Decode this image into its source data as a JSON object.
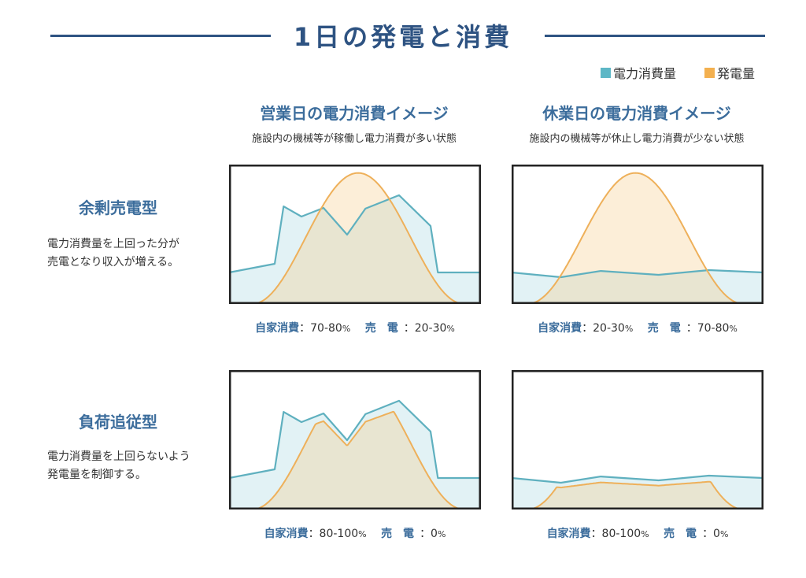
{
  "title": "1日の発電と消費",
  "legend": [
    {
      "label": "電力消費量",
      "color": "#5db7c6"
    },
    {
      "label": "発電量",
      "color": "#f3b04f"
    }
  ],
  "columns": [
    {
      "heading": "営業日の電力消費イメージ",
      "subtitle": "施設内の機械等が稼働し電力消費が多い状態"
    },
    {
      "heading": "休業日の電力消費イメージ",
      "subtitle": "施設内の機械等が休止し電力消費が少ない状態"
    }
  ],
  "rows": [
    {
      "heading": "余剰売電型",
      "desc1": "電力消費量を上回った分が",
      "desc2": "売電となり収入が増える。"
    },
    {
      "heading": "負荷追従型",
      "desc1": "電力消費量を上回らないよう",
      "desc2": "発電量を制御する。"
    }
  ],
  "captions": [
    {
      "self_label": "自家消費",
      "self_value": "：70-80",
      "sell_label": "売　電",
      "sell_value": "：20-30",
      "pct": "%"
    },
    {
      "self_label": "自家消費",
      "self_value": "：20-30",
      "sell_label": "売　電",
      "sell_value": "：70-80",
      "pct": "%"
    },
    {
      "self_label": "自家消費",
      "self_value": "：80-100",
      "sell_label": "売　電",
      "sell_value": "：0",
      "pct": "%"
    },
    {
      "self_label": "自家消費",
      "self_value": "：80-100",
      "sell_label": "売　電",
      "sell_value": "：0",
      "pct": "%"
    }
  ],
  "chart_data": [
    {
      "type": "area",
      "panel": "営業日・余剰売電型",
      "x_unit": "hour",
      "xlim": [
        0,
        24
      ],
      "ylim": [
        0,
        100
      ],
      "consumption": [
        [
          0,
          22.6
        ],
        [
          4.35,
          28.8
        ],
        [
          5.2,
          70
        ],
        [
          6.9,
          62.7
        ],
        [
          9,
          68.9
        ],
        [
          11.25,
          49.7
        ],
        [
          13,
          68.4
        ],
        [
          16.2,
          78
        ],
        [
          19.2,
          56
        ],
        [
          19.9,
          22.6
        ],
        [
          24,
          22.6
        ]
      ],
      "generation": {
        "start": 2.2,
        "end": 22.4,
        "peak": 94,
        "mode": "free"
      }
    },
    {
      "type": "area",
      "panel": "休業日・余剰売電型",
      "x_unit": "hour",
      "xlim": [
        0,
        24
      ],
      "ylim": [
        0,
        100
      ],
      "consumption": [
        [
          0,
          22.6
        ],
        [
          4.7,
          19.2
        ],
        [
          8.5,
          23.7
        ],
        [
          14,
          20.9
        ],
        [
          18.8,
          24.3
        ],
        [
          24,
          22.6
        ]
      ],
      "generation": {
        "start": 1.5,
        "end": 22.1,
        "peak": 94,
        "mode": "free"
      }
    },
    {
      "type": "area",
      "panel": "営業日・負荷追従型",
      "x_unit": "hour",
      "xlim": [
        0,
        24
      ],
      "ylim": [
        0,
        100
      ],
      "consumption": [
        [
          0,
          22.6
        ],
        [
          4.35,
          28.8
        ],
        [
          5.2,
          70
        ],
        [
          6.9,
          62.7
        ],
        [
          9,
          68.9
        ],
        [
          11.25,
          49.7
        ],
        [
          13,
          68.4
        ],
        [
          16.2,
          78
        ],
        [
          19.2,
          56
        ],
        [
          19.9,
          22.6
        ],
        [
          24,
          22.6
        ]
      ],
      "generation": {
        "start": 2.2,
        "end": 22.4,
        "peak": 94,
        "mode": "follow",
        "follow_ratio": 0.92
      }
    },
    {
      "type": "area",
      "panel": "休業日・負荷追従型",
      "x_unit": "hour",
      "xlim": [
        0,
        24
      ],
      "ylim": [
        0,
        100
      ],
      "consumption": [
        [
          0,
          22.6
        ],
        [
          4.7,
          19.2
        ],
        [
          8.5,
          23.7
        ],
        [
          14,
          20.9
        ],
        [
          18.8,
          24.3
        ],
        [
          24,
          22.6
        ]
      ],
      "generation": {
        "start": 1.5,
        "end": 22.1,
        "peak": 94,
        "mode": "follow",
        "follow_ratio": 0.82
      }
    }
  ]
}
